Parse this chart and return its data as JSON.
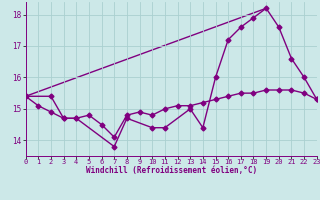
{
  "line1_x": [
    0,
    1,
    2,
    3,
    4,
    5,
    6,
    7,
    8,
    9,
    10,
    11,
    12,
    13,
    14,
    15,
    16,
    17,
    18,
    19,
    20,
    21,
    22,
    23
  ],
  "line1_y": [
    15.4,
    15.1,
    14.9,
    14.7,
    14.7,
    14.8,
    14.5,
    14.1,
    14.8,
    14.9,
    14.8,
    15.0,
    15.1,
    15.1,
    15.2,
    15.3,
    15.4,
    15.5,
    15.5,
    15.6,
    15.6,
    15.6,
    15.5,
    15.3
  ],
  "line2_x": [
    0,
    2,
    3,
    4,
    7,
    8,
    10,
    11,
    13,
    14,
    15,
    16,
    17,
    18,
    19,
    20,
    21,
    22,
    23
  ],
  "line2_y": [
    15.4,
    15.4,
    14.7,
    14.7,
    13.8,
    14.7,
    14.4,
    14.4,
    15.0,
    14.4,
    16.0,
    17.2,
    17.6,
    17.9,
    18.2,
    17.6,
    16.6,
    16.0,
    15.3
  ],
  "line3_x": [
    0,
    19
  ],
  "line3_y": [
    15.4,
    18.2
  ],
  "color": "#800080",
  "bg_color": "#cce8e8",
  "grid_color": "#aad0d0",
  "xlabel": "Windchill (Refroidissement éolien,°C)",
  "xlim": [
    0,
    23
  ],
  "ylim": [
    13.5,
    18.4
  ],
  "yticks": [
    14,
    15,
    16,
    17,
    18
  ],
  "xticks": [
    0,
    1,
    2,
    3,
    4,
    5,
    6,
    7,
    8,
    9,
    10,
    11,
    12,
    13,
    14,
    15,
    16,
    17,
    18,
    19,
    20,
    21,
    22,
    23
  ],
  "marker": "D",
  "markersize": 2.5,
  "linewidth": 1.0
}
